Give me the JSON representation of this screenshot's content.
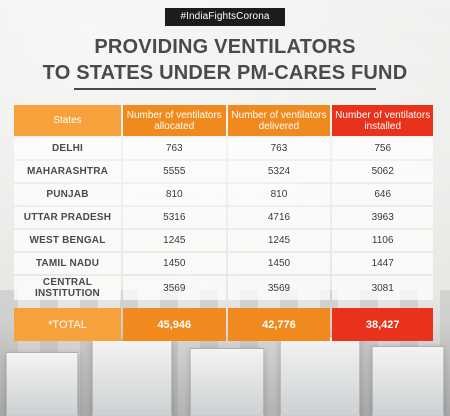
{
  "hashtag": "#IndiaFightsCorona",
  "title_line1": "PROVIDING VENTILATORS",
  "title_line2": "TO STATES UNDER PM-CARES FUND",
  "table": {
    "headers": {
      "state": "States",
      "allocated": "Number of ventilators allocated",
      "delivered": "Number of ventilators delivered",
      "installed": "Number of ventilators installed"
    },
    "rows": [
      {
        "state": "DELHI",
        "allocated": "763",
        "delivered": "763",
        "installed": "756"
      },
      {
        "state": "MAHARASHTRA",
        "allocated": "5555",
        "delivered": "5324",
        "installed": "5062"
      },
      {
        "state": "PUNJAB",
        "allocated": "810",
        "delivered": "810",
        "installed": "646"
      },
      {
        "state": "UTTAR PRADESH",
        "allocated": "5316",
        "delivered": "4716",
        "installed": "3963"
      },
      {
        "state": "WEST BENGAL",
        "allocated": "1245",
        "delivered": "1245",
        "installed": "1106"
      },
      {
        "state": "TAMIL NADU",
        "allocated": "1450",
        "delivered": "1450",
        "installed": "1447"
      },
      {
        "state": "CENTRAL INSTITUTION",
        "allocated": "3569",
        "delivered": "3569",
        "installed": "3081"
      }
    ],
    "total": {
      "label": "*TOTAL",
      "allocated": "45,946",
      "delivered": "42,776",
      "installed": "38,427"
    }
  },
  "colors": {
    "orange_light": "#f6a13c",
    "orange": "#f08a1e",
    "red": "#e8321c"
  }
}
